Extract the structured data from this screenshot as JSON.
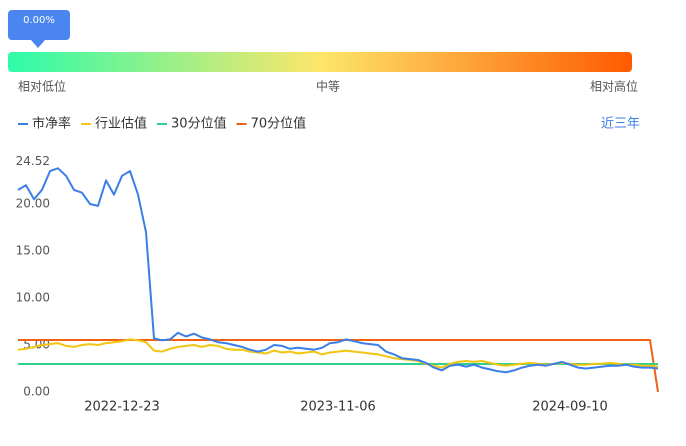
{
  "gauge": {
    "value": 0,
    "value_label": "0.00%",
    "labels": [
      "相对低位",
      "中等",
      "相对高位"
    ]
  },
  "range_link": "近三年",
  "chart_data": {
    "type": "line",
    "categories": [
      null,
      null,
      null,
      null,
      null,
      null,
      null,
      null,
      null,
      null,
      null,
      null,
      null,
      "2022-12-23",
      null,
      null,
      null,
      null,
      null,
      null,
      null,
      null,
      null,
      null,
      null,
      null,
      null,
      null,
      null,
      null,
      null,
      null,
      null,
      null,
      null,
      null,
      null,
      null,
      null,
      null,
      "2023-11-06",
      null,
      null,
      null,
      null,
      null,
      null,
      null,
      null,
      null,
      null,
      null,
      null,
      null,
      null,
      null,
      null,
      null,
      null,
      null,
      null,
      null,
      null,
      null,
      null,
      null,
      null,
      null,
      null,
      "2024-09-10",
      null,
      null,
      null,
      null,
      null,
      null,
      null,
      null,
      null,
      null,
      null
    ],
    "series": [
      {
        "name": "市净率",
        "color": "#3b7ee8",
        "values": [
          21.5,
          22,
          20.5,
          21.5,
          23.5,
          23.8,
          23,
          21.5,
          21.2,
          20,
          19.8,
          22.5,
          21,
          23,
          23.5,
          21,
          17,
          5.7,
          5.5,
          5.6,
          6.3,
          5.9,
          6.2,
          5.8,
          5.6,
          5.3,
          5.2,
          5.0,
          4.8,
          4.5,
          4.3,
          4.5,
          5.0,
          4.9,
          4.6,
          4.7,
          4.6,
          4.5,
          4.7,
          5.2,
          5.3,
          5.6,
          5.4,
          5.2,
          5.1,
          5.0,
          4.3,
          4.0,
          3.6,
          3.5,
          3.4,
          3.1,
          2.6,
          2.3,
          2.8,
          2.9,
          2.7,
          2.9,
          2.6,
          2.4,
          2.2,
          2.1,
          2.3,
          2.6,
          2.8,
          2.9,
          2.8,
          3.0,
          3.2,
          2.9,
          2.6,
          2.5,
          2.6,
          2.7,
          2.8,
          2.8,
          2.9,
          2.7,
          2.6,
          2.6,
          2.5
        ]
      },
      {
        "name": "行业估值",
        "color": "#f2c511",
        "values": [
          4.5,
          4.6,
          4.8,
          5.0,
          5.1,
          5.2,
          4.9,
          4.8,
          5.0,
          5.1,
          5.0,
          5.2,
          5.3,
          5.4,
          5.6,
          5.5,
          5.3,
          4.4,
          4.3,
          4.6,
          4.8,
          4.9,
          5.0,
          4.8,
          5.0,
          4.9,
          4.6,
          4.5,
          4.5,
          4.3,
          4.2,
          4.1,
          4.4,
          4.2,
          4.3,
          4.1,
          4.2,
          4.3,
          4.0,
          4.2,
          4.3,
          4.4,
          4.3,
          4.2,
          4.1,
          4.0,
          3.8,
          3.6,
          3.5,
          3.4,
          3.3,
          3.0,
          2.8,
          2.6,
          3.0,
          3.2,
          3.3,
          3.2,
          3.3,
          3.1,
          2.9,
          2.8,
          2.9,
          3.0,
          3.1,
          3.0,
          2.9,
          3.0,
          3.1,
          3.0,
          2.9,
          2.9,
          3.0,
          3.0,
          3.1,
          3.0,
          2.9,
          2.9,
          2.8,
          2.8,
          2.7
        ]
      },
      {
        "name": "30分位值",
        "color": "#2fcf8c",
        "values": [
          2.98,
          2.98,
          2.98,
          2.98,
          2.98,
          2.98,
          2.98,
          2.98,
          2.98,
          2.98,
          2.98,
          2.98,
          2.98,
          2.98,
          2.98,
          2.98,
          2.98,
          2.98,
          2.98,
          2.98,
          2.98,
          2.98,
          2.98,
          2.98,
          2.98,
          2.98,
          2.98,
          2.98,
          2.98,
          2.98,
          2.98,
          2.98,
          2.98,
          2.98,
          2.98,
          2.98,
          2.98,
          2.98,
          2.98,
          2.98,
          2.98,
          2.98,
          2.98,
          2.98,
          2.98,
          2.98,
          2.98,
          2.98,
          2.98,
          2.98,
          2.98,
          2.98,
          2.98,
          2.98,
          2.98,
          2.98,
          2.98,
          2.98,
          2.98,
          2.98,
          2.98,
          2.98,
          2.98,
          2.98,
          2.98,
          2.98,
          2.98,
          2.98,
          2.98,
          2.98,
          2.98,
          2.98,
          2.98,
          2.98,
          2.98,
          2.98,
          2.98,
          2.98,
          2.98,
          2.98,
          2.98
        ]
      },
      {
        "name": "70分位值",
        "color": "#ef6213",
        "values": [
          5.53,
          5.53,
          5.53,
          5.53,
          5.53,
          5.53,
          5.53,
          5.53,
          5.53,
          5.53,
          5.53,
          5.53,
          5.53,
          5.53,
          5.53,
          5.53,
          5.53,
          5.53,
          5.53,
          5.53,
          5.53,
          5.53,
          5.53,
          5.53,
          5.53,
          5.53,
          5.53,
          5.53,
          5.53,
          5.53,
          5.53,
          5.53,
          5.53,
          5.53,
          5.53,
          5.53,
          5.53,
          5.53,
          5.53,
          5.53,
          5.53,
          5.53,
          5.53,
          5.53,
          5.53,
          5.53,
          5.53,
          5.53,
          5.53,
          5.53,
          5.53,
          5.53,
          5.53,
          5.53,
          5.53,
          5.53,
          5.53,
          5.53,
          5.53,
          5.53,
          5.53,
          5.53,
          5.53,
          5.53,
          5.53,
          5.53,
          5.53,
          5.53,
          5.53,
          5.53,
          5.53,
          5.53,
          5.53,
          5.53,
          5.53,
          5.53,
          5.53,
          5.53,
          5.53,
          5.53,
          0
        ]
      }
    ],
    "ylim": [
      0,
      24.52
    ],
    "yticks": [
      {
        "value": 0,
        "label": "0.00"
      },
      {
        "value": 5,
        "label": "5.00"
      },
      {
        "value": 10,
        "label": "10.00"
      },
      {
        "value": 15,
        "label": "15.00"
      },
      {
        "value": 20,
        "label": "20.00"
      },
      24.52
    ]
  }
}
